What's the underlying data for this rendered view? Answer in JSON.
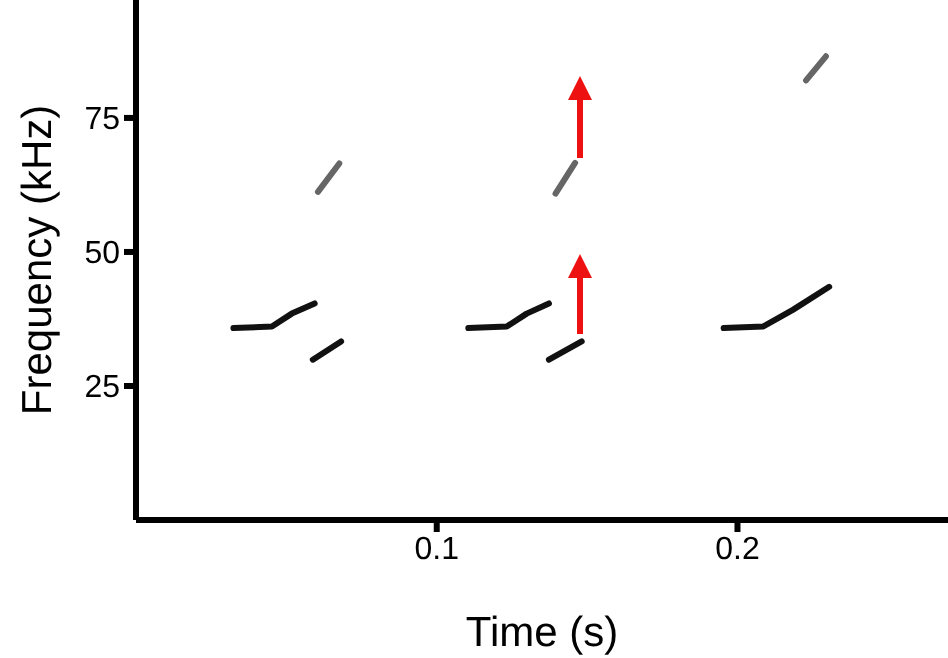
{
  "chart_data": {
    "type": "line",
    "xlabel": "Time (s)",
    "ylabel": "Frequency (kHz)",
    "xlim": [
      0,
      0.27
    ],
    "ylim": [
      0,
      97
    ],
    "xticks": [
      0.1,
      0.2
    ],
    "yticks": [
      25,
      50,
      75
    ],
    "grid": false,
    "marker": "none",
    "line_style": "solid",
    "series": [
      {
        "color": "#111111",
        "x": [
          0.0324,
          0.0452,
          0.0518,
          0.0594
        ],
        "values": [
          35.8,
          36.1,
          38.5,
          40.4
        ]
      },
      {
        "color": "#111111",
        "x": [
          0.0588,
          0.0682
        ],
        "values": [
          29.9,
          33.3
        ]
      },
      {
        "color": "#666666",
        "x": [
          0.0605,
          0.0676
        ],
        "values": [
          61.2,
          66.5
        ]
      },
      {
        "color": "#111111",
        "x": [
          0.1105,
          0.1233,
          0.1299,
          0.1373
        ],
        "values": [
          35.8,
          36.1,
          38.5,
          40.4
        ]
      },
      {
        "color": "#111111",
        "x": [
          0.1373,
          0.1482
        ],
        "values": [
          29.9,
          33.3
        ]
      },
      {
        "color": "#666666",
        "x": [
          0.1395,
          0.146
        ],
        "values": [
          60.9,
          66.6
        ]
      },
      {
        "color": "#111111",
        "x": [
          0.1954,
          0.2086,
          0.2184,
          0.2305
        ],
        "values": [
          35.8,
          36.1,
          39.2,
          43.5
        ]
      },
      {
        "color": "#666666",
        "x": [
          0.2228,
          0.2294
        ],
        "values": [
          82,
          86.5
        ]
      }
    ]
  }
}
